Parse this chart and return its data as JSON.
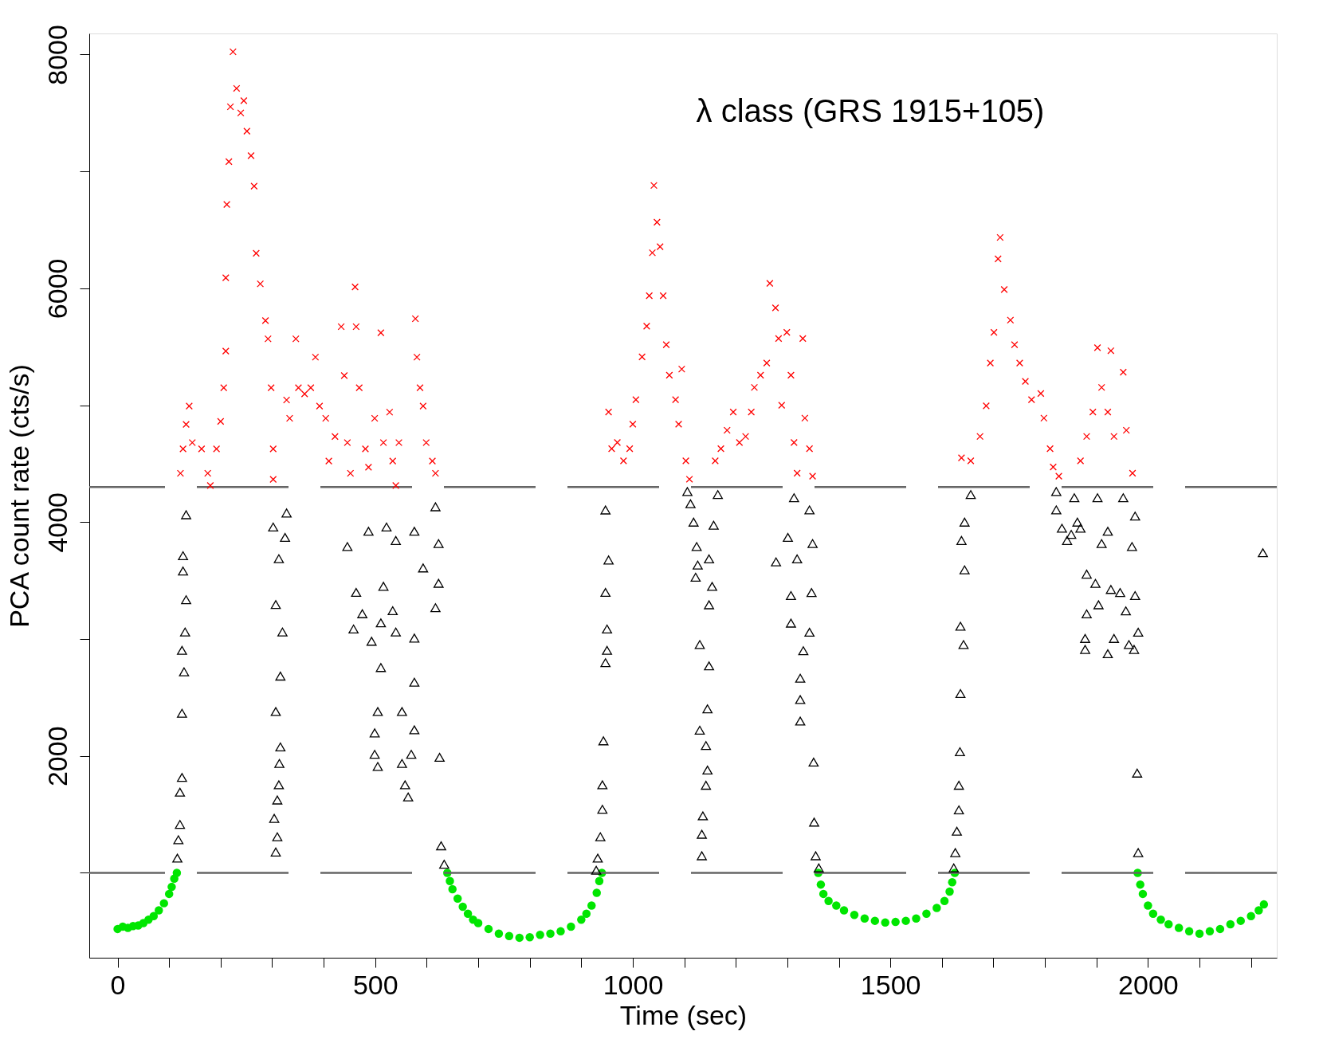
{
  "chart_data": {
    "type": "scatter",
    "xlabel": "Time (sec)",
    "ylabel": "PCA count rate (cts/s)",
    "annotations": [
      "λ class (GRS 1915+105)"
    ],
    "xlim": [
      -55,
      2250
    ],
    "ylim": [
      274,
      8180
    ],
    "xticks": [
      0,
      {
        "value": 100,
        "label": null
      },
      {
        "value": 200,
        "label": null
      },
      {
        "value": 300,
        "label": null
      },
      {
        "value": 400,
        "label": null
      },
      500,
      {
        "value": 600,
        "label": null
      },
      {
        "value": 700,
        "label": null
      },
      {
        "value": 800,
        "label": null
      },
      {
        "value": 900,
        "label": null
      },
      1000,
      {
        "value": 1100,
        "label": null
      },
      {
        "value": 1200,
        "label": null
      },
      {
        "value": 1300,
        "label": null
      },
      {
        "value": 1400,
        "label": null
      },
      1500,
      {
        "value": 1600,
        "label": null
      },
      {
        "value": 1700,
        "label": null
      },
      {
        "value": 1800,
        "label": null
      },
      {
        "value": 1900,
        "label": null
      },
      2000,
      {
        "value": 2100,
        "label": null
      },
      {
        "value": 2200,
        "label": null
      }
    ],
    "yticks": [
      {
        "value": 1000,
        "label": null
      },
      2000,
      {
        "value": 3000,
        "label": null
      },
      4000,
      {
        "value": 5000,
        "label": null
      },
      6000,
      {
        "value": 7000,
        "label": null
      },
      8000
    ],
    "grid": false,
    "ref_lines": [
      {
        "axis": "y",
        "value": 4300,
        "label": null,
        "color": "#666666",
        "line_style": "dashed"
      },
      {
        "axis": "y",
        "value": 1000,
        "label": null,
        "color": "#666666",
        "line_style": "dashed"
      }
    ],
    "series": [
      {
        "marker": "circle",
        "color": "#00e600",
        "x": [
          0,
          10,
          20,
          30,
          40,
          50,
          60,
          70,
          80,
          90,
          100,
          105,
          110,
          115,
          640,
          645,
          650,
          660,
          670,
          680,
          690,
          700,
          720,
          740,
          760,
          780,
          800,
          820,
          840,
          860,
          880,
          900,
          910,
          920,
          930,
          935,
          940,
          1360,
          1365,
          1370,
          1380,
          1395,
          1410,
          1430,
          1450,
          1470,
          1490,
          1510,
          1530,
          1550,
          1570,
          1590,
          1605,
          1615,
          1620,
          1625,
          1980,
          1985,
          1990,
          2000,
          2010,
          2025,
          2040,
          2060,
          2080,
          2100,
          2120,
          2140,
          2160,
          2180,
          2200,
          2215,
          2225
        ],
        "values": [
          520,
          540,
          530,
          545,
          550,
          570,
          600,
          630,
          680,
          740,
          820,
          880,
          950,
          1000,
          1000,
          930,
          860,
          780,
          710,
          650,
          600,
          570,
          520,
          480,
          460,
          445,
          450,
          470,
          480,
          500,
          540,
          600,
          650,
          720,
          830,
          930,
          1000,
          1000,
          900,
          820,
          760,
          720,
          680,
          640,
          610,
          590,
          575,
          580,
          590,
          610,
          650,
          700,
          760,
          840,
          920,
          1000,
          1000,
          900,
          820,
          720,
          650,
          600,
          560,
          530,
          500,
          480,
          500,
          520,
          560,
          590,
          630,
          680,
          730
        ]
      },
      {
        "marker": "triangle",
        "color": "#000000",
        "x": [
          133,
          127,
          127,
          133,
          131,
          125,
          129,
          125,
          125,
          121,
          121,
          118,
          116,
          328,
          302,
          325,
          313,
          307,
          320,
          316,
          307,
          316,
          314,
          313,
          310,
          304,
          310,
          307,
          446,
          487,
          522,
          540,
          576,
          623,
          617,
          463,
          516,
          534,
          593,
          623,
          617,
          475,
          458,
          511,
          493,
          540,
          576,
          511,
          576,
          505,
          499,
          499,
          505,
          552,
          576,
          552,
          558,
          564,
          570,
          625,
          628,
          634,
          947,
          953,
          947,
          950,
          950,
          947,
          943,
          941,
          941,
          937,
          932,
          929,
          1106,
          1112,
          1118,
          1124,
          1126,
          1122,
          1148,
          1157,
          1154,
          1148,
          1130,
          1148,
          1145,
          1130,
          1142,
          1145,
          1142,
          1136,
          1134,
          1134,
          1165,
          1278,
          1301,
          1313,
          1343,
          1349,
          1319,
          1307,
          1307,
          1347,
          1343,
          1331,
          1325,
          1325,
          1325,
          1351,
          1352,
          1355,
          1361,
          1656,
          1644,
          1638,
          1644,
          1636,
          1642,
          1636,
          1635,
          1633,
          1633,
          1629,
          1626,
          1623,
          1822,
          1822,
          1833,
          1843,
          1857,
          1863,
          1851,
          1869,
          1902,
          1922,
          1910,
          1881,
          1898,
          1904,
          1881,
          1928,
          1946,
          1957,
          1975,
          1952,
          1975,
          1969,
          1878,
          1878,
          1922,
          1934,
          1963,
          1981,
          1973,
          1979,
          1981,
          2223
        ],
        "values": [
          4063,
          3713,
          3582,
          3336,
          3060,
          2903,
          2720,
          2365,
          1816,
          1690,
          1414,
          1283,
          1126,
          4078,
          3958,
          3869,
          3687,
          3295,
          3060,
          2683,
          2380,
          2077,
          1936,
          1753,
          1623,
          1466,
          1309,
          1178,
          3791,
          3922,
          3958,
          3843,
          3922,
          3817,
          4131,
          3399,
          3451,
          3242,
          3608,
          3477,
          3268,
          3216,
          3086,
          3138,
          2981,
          3060,
          3008,
          2756,
          2631,
          2380,
          2197,
          2014,
          1910,
          2380,
          2223,
          1936,
          1753,
          1649,
          2014,
          1988,
          1231,
          1074,
          4104,
          3676,
          3399,
          3086,
          2903,
          2798,
          2129,
          1753,
          1544,
          1309,
          1126,
          1022,
          4262,
          4157,
          4000,
          3791,
          3633,
          3529,
          3686,
          3974,
          3450,
          3293,
          2953,
          2770,
          2403,
          2220,
          2089,
          1879,
          1749,
          1487,
          1330,
          1146,
          4236,
          3660,
          3869,
          4209,
          4105,
          3817,
          3686,
          3372,
          3136,
          3398,
          3058,
          2900,
          2665,
          2482,
          2298,
          1947,
          1434,
          1146,
          1042,
          4236,
          4000,
          3843,
          3592,
          3110,
          2953,
          2534,
          2036,
          1749,
          1539,
          1356,
          1173,
          1042,
          4262,
          4105,
          3948,
          3843,
          4209,
          4000,
          3895,
          3948,
          4209,
          3922,
          3817,
          3555,
          3476,
          3293,
          3215,
          3424,
          3398,
          3241,
          3372,
          4209,
          4052,
          3791,
          3005,
          2911,
          2874,
          3005,
          2953,
          3058,
          2911,
          1853,
          1173,
          3738
        ]
      },
      {
        "marker": "cross",
        "color": "#ff0000",
        "x": [
          139,
          133,
          145,
          163,
          175,
          180,
          192,
          200,
          206,
          210,
          210,
          212,
          216,
          219,
          224,
          231,
          239,
          245,
          251,
          259,
          265,
          269,
          277,
          287,
          292,
          298,
          302,
          302,
          127,
          122,
          328,
          334,
          346,
          351,
          363,
          375,
          384,
          392,
          404,
          410,
          422,
          434,
          440,
          446,
          452,
          461,
          463,
          469,
          481,
          487,
          499,
          511,
          516,
          528,
          534,
          540,
          546,
          578,
          581,
          587,
          593,
          599,
          611,
          617,
          953,
          959,
          970,
          982,
          994,
          1000,
          1006,
          1018,
          1027,
          1032,
          1038,
          1041,
          1047,
          1053,
          1059,
          1065,
          1071,
          1083,
          1089,
          1095,
          1103,
          1110,
          1160,
          1171,
          1183,
          1195,
          1207,
          1219,
          1230,
          1236,
          1248,
          1260,
          1266,
          1277,
          1283,
          1289,
          1299,
          1307,
          1313,
          1319,
          1330,
          1334,
          1343,
          1349,
          1638,
          1656,
          1674,
          1686,
          1694,
          1701,
          1709,
          1713,
          1721,
          1733,
          1741,
          1751,
          1762,
          1774,
          1792,
          1798,
          1810,
          1816,
          1827,
          1869,
          1881,
          1893,
          1902,
          1910,
          1922,
          1928,
          1934,
          1952,
          1958,
          1970
        ],
        "values": [
          4993,
          4836,
          4680,
          4627,
          4418,
          4313,
          4627,
          4862,
          5150,
          5463,
          6090,
          6717,
          7083,
          7553,
          8023,
          7710,
          7500,
          7605,
          7344,
          7135,
          6874,
          6300,
          6038,
          5724,
          5568,
          5150,
          4627,
          4366,
          4627,
          4418,
          5045,
          4888,
          5568,
          5150,
          5097,
          5150,
          5411,
          4993,
          4888,
          4523,
          4732,
          5672,
          5254,
          4680,
          4418,
          6012,
          5672,
          5150,
          4627,
          4470,
          4888,
          5620,
          4680,
          4941,
          4523,
          4313,
          4680,
          5740,
          5411,
          5150,
          4993,
          4680,
          4523,
          4418,
          4942,
          4628,
          4681,
          4524,
          4628,
          4838,
          5047,
          5414,
          5676,
          5937,
          6304,
          6880,
          6566,
          6356,
          5937,
          5518,
          5257,
          5047,
          4838,
          5309,
          4524,
          4367,
          4524,
          4628,
          4786,
          4942,
          4681,
          4733,
          4942,
          5152,
          5257,
          5361,
          6042,
          5833,
          5571,
          5000,
          5623,
          5257,
          4681,
          4419,
          5571,
          4890,
          4628,
          4393,
          4550,
          4524,
          4733,
          4995,
          5361,
          5623,
          6252,
          6435,
          5990,
          5728,
          5518,
          5361,
          5204,
          5047,
          5100,
          4890,
          4628,
          4471,
          4393,
          4524,
          4733,
          4942,
          5492,
          5152,
          4942,
          5466,
          4733,
          5283,
          4786,
          4419
        ]
      }
    ]
  }
}
